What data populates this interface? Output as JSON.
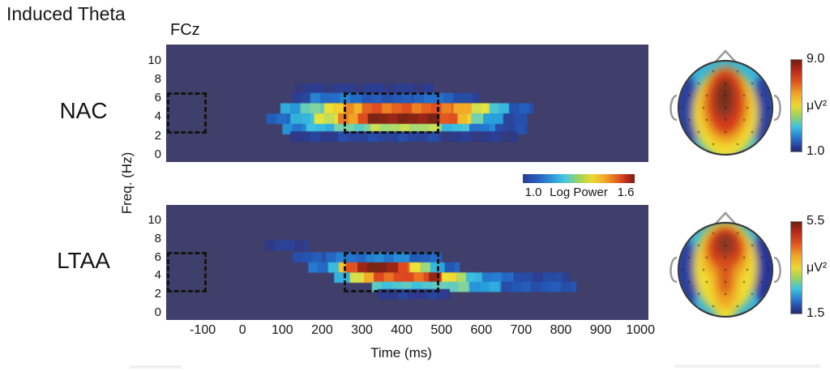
{
  "title": "Induced Theta",
  "electrode_label": "FCz",
  "conditions": [
    {
      "label": "NAC"
    },
    {
      "label": "LTAA"
    }
  ],
  "axes": {
    "x": {
      "label": "Time (ms)",
      "ticks": [
        "-100",
        "0",
        "100",
        "200",
        "300",
        "400",
        "500",
        "600",
        "700",
        "800",
        "900",
        "1000"
      ],
      "tick_values": [
        -100,
        0,
        100,
        200,
        300,
        400,
        500,
        600,
        700,
        800,
        900,
        1000
      ],
      "range_ms": [
        -192,
        1020
      ]
    },
    "y": {
      "label": "Freq. (Hz)",
      "ticks": [
        "10",
        "8",
        "6",
        "4",
        "2",
        "0"
      ],
      "tick_values": [
        10,
        8,
        6,
        4,
        2,
        0
      ],
      "range_hz": [
        -0.8,
        11.7
      ]
    }
  },
  "colorbar_mid": {
    "min": "1.0",
    "label": "Log Power",
    "max": "1.6"
  },
  "colors": {
    "spectrogram_background": "#403e6b",
    "box_dash": "#141414",
    "hot_max": "#7a2414"
  },
  "chart_data": {
    "type": "heatmap",
    "title": "Induced Theta",
    "electrode": "FCz",
    "units": "Log Power",
    "value_range": [
      1.0,
      1.6
    ],
    "panels": [
      {
        "condition": "NAC",
        "baseline_box": {
          "t": [
            -190,
            -90
          ],
          "f": [
            2.2,
            6.6
          ]
        },
        "analysis_box": {
          "t": [
            255,
            495
          ],
          "f": [
            2.2,
            6.6
          ]
        },
        "rows": [
          {
            "f": 7.0,
            "segments": [
              [
                130,
                480,
                1.04
              ]
            ]
          },
          {
            "f": 6.0,
            "segments": [
              [
                125,
                170,
                1.07
              ],
              [
                170,
                300,
                1.15
              ],
              [
                300,
                430,
                1.1
              ],
              [
                430,
                530,
                1.14
              ],
              [
                530,
                595,
                1.07
              ]
            ]
          },
          {
            "f": 4.9,
            "segments": [
              [
                95,
                145,
                1.2
              ],
              [
                145,
                205,
                1.3
              ],
              [
                205,
                255,
                1.43
              ],
              [
                255,
                300,
                1.48
              ],
              [
                300,
                530,
                1.51
              ],
              [
                530,
                575,
                1.46
              ],
              [
                575,
                620,
                1.4
              ],
              [
                620,
                670,
                1.25
              ],
              [
                670,
                730,
                1.1
              ]
            ]
          },
          {
            "f": 3.8,
            "segments": [
              [
                60,
                120,
                1.13
              ],
              [
                120,
                180,
                1.24
              ],
              [
                180,
                240,
                1.39
              ],
              [
                240,
                290,
                1.48
              ],
              [
                290,
                315,
                1.54
              ],
              [
                315,
                495,
                1.6
              ],
              [
                495,
                540,
                1.53
              ],
              [
                540,
                575,
                1.44
              ],
              [
                575,
                605,
                1.32
              ],
              [
                605,
                655,
                1.19
              ],
              [
                655,
                715,
                1.08
              ]
            ]
          },
          {
            "f": 2.7,
            "segments": [
              [
                100,
                160,
                1.17
              ],
              [
                160,
                230,
                1.24
              ],
              [
                230,
                320,
                1.3
              ],
              [
                320,
                500,
                1.36
              ],
              [
                500,
                570,
                1.25
              ],
              [
                570,
                635,
                1.16
              ],
              [
                635,
                715,
                1.08
              ]
            ]
          },
          {
            "f": 1.9,
            "segments": [
              [
                120,
                240,
                1.05
              ],
              [
                240,
                500,
                1.07
              ],
              [
                500,
                690,
                1.04
              ]
            ]
          }
        ],
        "topoplot": {
          "scale_max_label": "9.0",
          "unit_label": "μV²",
          "scale_min_label": "1.0",
          "pattern": "broad central-midline theta maximum"
        }
      },
      {
        "condition": "LTAA",
        "baseline_box": {
          "t": [
            -190,
            -90
          ],
          "f": [
            2.2,
            6.6
          ]
        },
        "analysis_box": {
          "t": [
            255,
            495
          ],
          "f": [
            2.2,
            6.6
          ]
        },
        "rows": [
          {
            "f": 7.3,
            "segments": [
              [
                55,
                165,
                1.05
              ]
            ]
          },
          {
            "f": 6.0,
            "segments": [
              [
                125,
                210,
                1.1
              ],
              [
                210,
                330,
                1.15
              ],
              [
                330,
                420,
                1.17
              ],
              [
                420,
                500,
                1.12
              ]
            ]
          },
          {
            "f": 4.9,
            "segments": [
              [
                165,
                215,
                1.14
              ],
              [
                215,
                242,
                1.26
              ],
              [
                242,
                260,
                1.43
              ],
              [
                260,
                288,
                1.52
              ],
              [
                288,
                390,
                1.6
              ],
              [
                390,
                420,
                1.51
              ],
              [
                420,
                448,
                1.42
              ],
              [
                448,
                472,
                1.34
              ],
              [
                472,
                508,
                1.22
              ],
              [
                508,
                545,
                1.12
              ]
            ]
          },
          {
            "f": 3.8,
            "segments": [
              [
                230,
                270,
                1.22
              ],
              [
                270,
                305,
                1.4
              ],
              [
                305,
                330,
                1.46
              ],
              [
                330,
                468,
                1.52
              ],
              [
                468,
                500,
                1.57
              ],
              [
                500,
                538,
                1.43
              ],
              [
                538,
                562,
                1.34
              ],
              [
                562,
                602,
                1.25
              ],
              [
                602,
                680,
                1.15
              ],
              [
                680,
                820,
                1.07
              ]
            ]
          },
          {
            "f": 2.8,
            "segments": [
              [
                325,
                490,
                1.27
              ],
              [
                490,
                570,
                1.3
              ],
              [
                570,
                650,
                1.2
              ],
              [
                650,
                838,
                1.1
              ]
            ]
          },
          {
            "f": 2.0,
            "segments": [
              [
                340,
                520,
                1.05
              ]
            ]
          }
        ],
        "topoplot": {
          "scale_max_label": "5.5",
          "unit_label": "μV²",
          "scale_min_label": "1.5",
          "pattern": "frontal-midline theta maximum extending posteriorly along midline"
        }
      }
    ]
  }
}
